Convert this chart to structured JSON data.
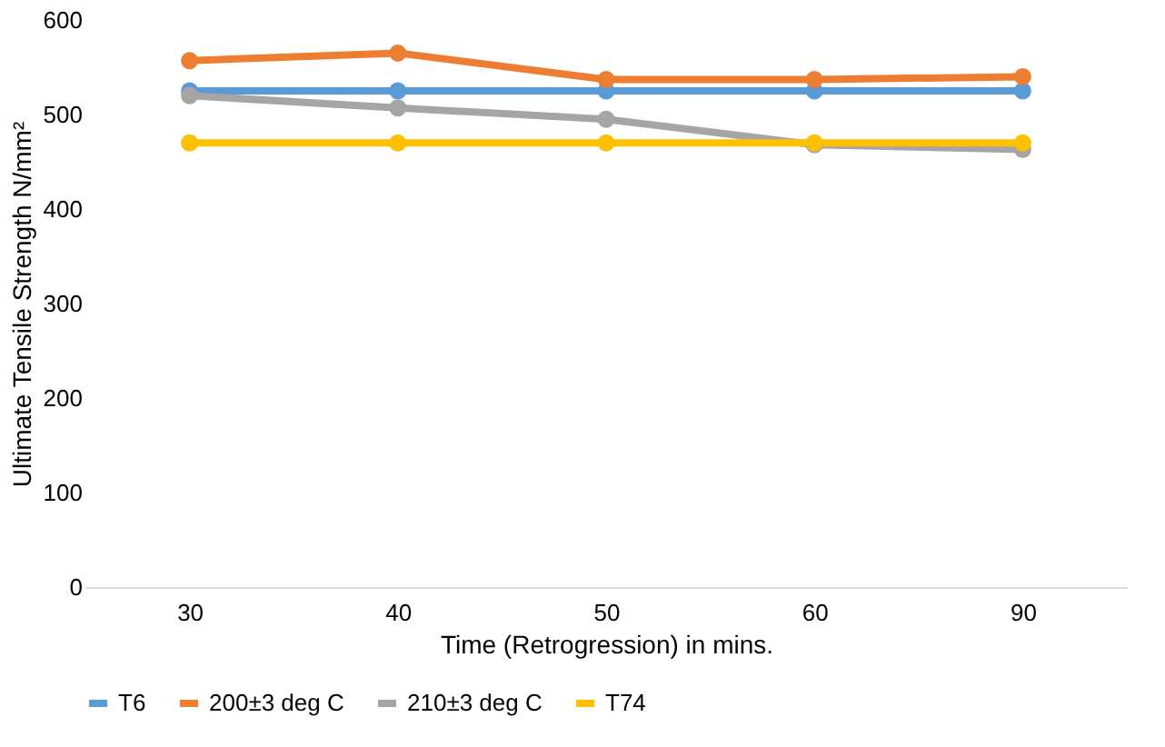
{
  "chart_data": {
    "type": "line",
    "xlabel": "Time (Retrogression) in mins.",
    "ylabel": "Ultimate Tensile Strength N/mm²",
    "categories": [
      "30",
      "40",
      "50",
      "60",
      "90"
    ],
    "series": [
      {
        "name": "T6",
        "color": "#5b9bd5",
        "values": [
          525,
          525,
          525,
          525,
          525
        ]
      },
      {
        "name": "200±3 deg C",
        "color": "#ed7d31",
        "values": [
          557,
          565,
          537,
          537,
          540
        ]
      },
      {
        "name": "210±3 deg C",
        "color": "#a5a5a5",
        "values": [
          520,
          507,
          495,
          468,
          463
        ]
      },
      {
        "name": "T74",
        "color": "#ffc000",
        "values": [
          470,
          470,
          470,
          470,
          470
        ]
      }
    ],
    "ylim": [
      0,
      600
    ],
    "yticks": [
      0,
      100,
      200,
      300,
      400,
      500,
      600
    ],
    "grid": false,
    "legend": "bottom",
    "marker": "circle",
    "line_style": "solid"
  }
}
